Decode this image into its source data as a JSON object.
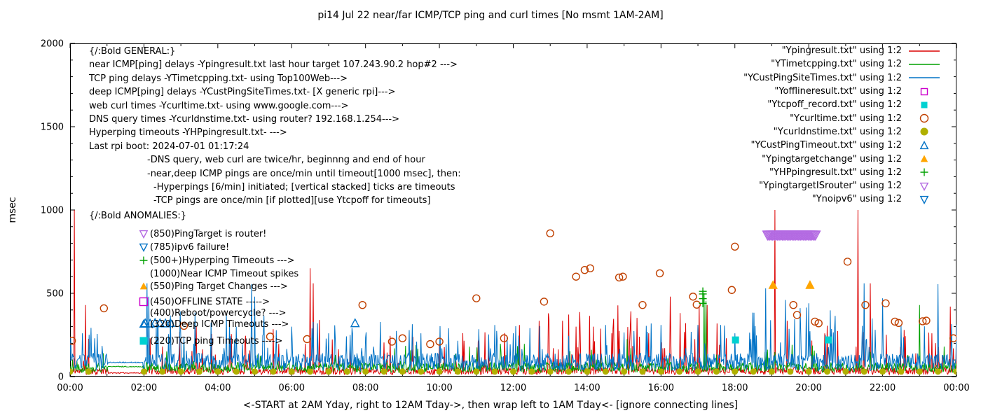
{
  "title": "pi14 Jul 22  near/far ICMP/TCP ping and curl times [No msmt 1AM-2AM]",
  "general": {
    "header": "{/:Bold GENERAL:}",
    "lines": [
      {
        "text": "near ICMP[ping] delays -Ypingresult.txt last hour target 107.243.90.2 hop#2 --->",
        "indent": 0
      },
      {
        "text": "TCP ping delays -YTimetcpping.txt- using Top100Web--->",
        "indent": 0
      },
      {
        "text": "deep ICMP[ping] delays -YCustPingSiteTimes.txt- [X generic rpi]--->",
        "indent": 0
      },
      {
        "text": "web curl times -Ycurltime.txt- using www.google.com--->",
        "indent": 0
      },
      {
        "text": "DNS query times -Ycurldnstime.txt- using router? 192.168.1.254--->",
        "indent": 0
      },
      {
        "text": "Hyperping timeouts -YHPpingresult.txt- --->",
        "indent": 0
      },
      {
        "text": "Last rpi boot: 2024-07-01 01:17:24",
        "indent": 0
      },
      {
        "text": "-DNS query, web curl are twice/hr, beginnng and end of hour",
        "indent": 1
      },
      {
        "text": "-near,deep ICMP pings are once/min until timeout[1000 msec], then:",
        "indent": 1
      },
      {
        "text": "-Hyperpings [6/min] initiated; [vertical stacked] ticks are timeouts",
        "indent": 2
      },
      {
        "text": "-TCP pings are once/min [if plotted][use Ytcpoff for timeouts]",
        "indent": 2
      }
    ]
  },
  "anomalies": {
    "header": "{/:Bold ANOMALIES:}",
    "items": [
      {
        "marker": "tri-down-open",
        "color": "#b36ae2",
        "text": "(850)PingTarget is router!"
      },
      {
        "marker": "tri-down-open",
        "color": "#0072c6",
        "text": "(785)ipv6 failure!"
      },
      {
        "marker": "plus",
        "color": "#00a000",
        "text": "(500+)Hyperping Timeouts --->"
      },
      {
        "marker": "none",
        "color": "",
        "text": "(1000)Near ICMP Timeout spikes"
      },
      {
        "marker": "tri-up-fill",
        "color": "#ffa500",
        "text": "(550)Ping Target Changes --->"
      },
      {
        "marker": "square-open",
        "color": "#cc00cc",
        "text": "(450)OFFLINE STATE ----->"
      },
      {
        "marker": "none",
        "color": "",
        "text": "(400)Reboot/powercycle? --->"
      },
      {
        "marker": "tri-up-open",
        "color": "#0072c6",
        "text": "(320)Deep ICMP Timeouts --->"
      },
      {
        "marker": "square-fill",
        "color": "#00d1d1",
        "text": "(220)TCP ping Timeouts ---->"
      }
    ]
  },
  "legend": [
    {
      "label": "\"Ypingresult.txt\" using 1:2",
      "symbol": "line",
      "color": "#dc0000"
    },
    {
      "label": "\"YTimetcpping.txt\" using 1:2",
      "symbol": "line",
      "color": "#00a000"
    },
    {
      "label": "\"YCustPingSiteTimes.txt\" using 1:2",
      "symbol": "line",
      "color": "#0072c6"
    },
    {
      "label": "\"Yofflineresult.txt\" using 1:2",
      "symbol": "square-open",
      "color": "#cc00cc"
    },
    {
      "label": "\"Ytcpoff_record.txt\" using 1:2",
      "symbol": "square-fill",
      "color": "#00d1d1"
    },
    {
      "label": "\"Ycurltime.txt\" using 1:2",
      "symbol": "circle-open",
      "color": "#c04000"
    },
    {
      "label": "\"Ycurldnstime.txt\" using 1:2",
      "symbol": "circle-fill",
      "color": "#b0b000"
    },
    {
      "label": "\"YCustPingTimeout.txt\" using 1:2",
      "symbol": "tri-up-open",
      "color": "#0072c6"
    },
    {
      "label": "\"Ypingtargetchange\" using 1:2",
      "symbol": "tri-up-fill",
      "color": "#ffa500"
    },
    {
      "label": "\"YHPpingresult.txt\" using 1:2",
      "symbol": "plus",
      "color": "#00a000"
    },
    {
      "label": "\"YpingtargetISrouter\" using 1:2",
      "symbol": "tri-down-open",
      "color": "#b36ae2"
    },
    {
      "label": "\"Ynoipv6\" using 1:2",
      "symbol": "tri-down-open",
      "color": "#0072c6"
    }
  ],
  "chart_data": {
    "type": "line",
    "x_unit": "minutes since 00:00 over a 24h window",
    "axes": {
      "ylabel": "msec",
      "xlabel": "<-START at 2AM Yday, right to 12AM Tday->, then wrap left to 1AM Tday<- [ignore connecting lines]",
      "ylim": [
        0,
        2000
      ],
      "xlim": [
        0,
        1440
      ],
      "yticks": [
        0,
        500,
        1000,
        1500,
        2000
      ],
      "xticks": {
        "minutes": [
          0,
          120,
          240,
          360,
          480,
          600,
          720,
          840,
          960,
          1080,
          1200,
          1320,
          1440
        ],
        "labels": [
          "00:00",
          "02:00",
          "04:00",
          "06:00",
          "08:00",
          "10:00",
          "12:00",
          "14:00",
          "16:00",
          "18:00",
          "20:00",
          "22:00",
          "00:00"
        ]
      },
      "no_measurement_window": "01:00-02:00"
    },
    "lines": [
      {
        "id": "Ypingresult",
        "name": "near ICMP ping delay",
        "color": "#dc0000",
        "seed": 11,
        "base": [
          12,
          55
        ],
        "spike": {
          "prob": 0.05,
          "min": 80,
          "max": 280
        },
        "busy": [
          {
            "from": 740,
            "to": 1070,
            "prob": 0.12,
            "min": 120,
            "max": 430
          }
        ],
        "quiet": [
          62,
          118
        ],
        "quiet_value": 22,
        "spikes": [
          [
            7,
            1000
          ],
          [
            25,
            430
          ],
          [
            130,
            230
          ],
          [
            150,
            180
          ],
          [
            205,
            300
          ],
          [
            262,
            255
          ],
          [
            330,
            285
          ],
          [
            390,
            650
          ],
          [
            395,
            560
          ],
          [
            405,
            340
          ],
          [
            455,
            210
          ],
          [
            520,
            245
          ],
          [
            600,
            195
          ],
          [
            640,
            215
          ],
          [
            680,
            175
          ],
          [
            730,
            310
          ],
          [
            777,
            380
          ],
          [
            800,
            335
          ],
          [
            822,
            300
          ],
          [
            850,
            300
          ],
          [
            880,
            260
          ],
          [
            910,
            285
          ],
          [
            940,
            260
          ],
          [
            975,
            480
          ],
          [
            1000,
            320
          ],
          [
            1020,
            305
          ],
          [
            1145,
            1000
          ],
          [
            1165,
            335
          ],
          [
            1230,
            305
          ],
          [
            1280,
            1000
          ],
          [
            1300,
            560
          ],
          [
            1355,
            280
          ],
          [
            1400,
            260
          ],
          [
            1430,
            420
          ]
        ]
      },
      {
        "id": "YTimetcpping",
        "name": "TCP ping delay",
        "color": "#00a000",
        "seed": 22,
        "base": [
          25,
          85
        ],
        "spike": {
          "prob": 0.03,
          "min": 90,
          "max": 200
        },
        "busy": [],
        "quiet": [
          62,
          118
        ],
        "quiet_value": 60,
        "spikes": [
          [
            185,
            210
          ],
          [
            545,
            185
          ],
          [
            905,
            225
          ],
          [
            1030,
            500
          ],
          [
            1033,
            455
          ],
          [
            1380,
            430
          ],
          [
            1420,
            180
          ]
        ]
      },
      {
        "id": "YCustPingSiteTimes",
        "name": "deep ICMP ping delay",
        "color": "#0072c6",
        "seed": 33,
        "base": [
          35,
          140
        ],
        "spike": {
          "prob": 0.06,
          "min": 150,
          "max": 330
        },
        "busy": [
          {
            "from": 120,
            "to": 330,
            "prob": 0.1,
            "min": 150,
            "max": 400
          },
          {
            "from": 1100,
            "to": 1440,
            "prob": 0.09,
            "min": 150,
            "max": 420
          }
        ],
        "quiet": [
          62,
          118
        ],
        "quiet_value": 85,
        "spikes": [
          [
            20,
            260
          ],
          [
            40,
            230
          ],
          [
            125,
            560
          ],
          [
            128,
            480
          ],
          [
            140,
            300
          ],
          [
            160,
            255
          ],
          [
            185,
            240
          ],
          [
            270,
            300
          ],
          [
            295,
            555
          ],
          [
            300,
            480
          ],
          [
            360,
            300
          ],
          [
            420,
            260
          ],
          [
            480,
            235
          ],
          [
            570,
            260
          ],
          [
            630,
            215
          ],
          [
            690,
            310
          ],
          [
            720,
            260
          ],
          [
            810,
            245
          ],
          [
            870,
            310
          ],
          [
            900,
            265
          ],
          [
            960,
            310
          ],
          [
            1020,
            310
          ],
          [
            1080,
            260
          ],
          [
            1130,
            530
          ],
          [
            1162,
            460
          ],
          [
            1200,
            440
          ],
          [
            1240,
            265
          ],
          [
            1290,
            560
          ],
          [
            1320,
            470
          ],
          [
            1350,
            310
          ],
          [
            1410,
            555
          ],
          [
            1432,
            315
          ]
        ]
      }
    ],
    "scatter": [
      {
        "id": "Ycurltime",
        "name": "web curl time",
        "marker": "circle-open",
        "color": "#c04000",
        "size": 5,
        "points": [
          [
            3,
            215
          ],
          [
            55,
            410
          ],
          [
            185,
            305
          ],
          [
            325,
            240
          ],
          [
            385,
            225
          ],
          [
            475,
            430
          ],
          [
            523,
            210
          ],
          [
            540,
            230
          ],
          [
            585,
            195
          ],
          [
            600,
            210
          ],
          [
            660,
            470
          ],
          [
            705,
            230
          ],
          [
            770,
            450
          ],
          [
            780,
            860
          ],
          [
            822,
            600
          ],
          [
            836,
            640
          ],
          [
            845,
            650
          ],
          [
            892,
            595
          ],
          [
            898,
            600
          ],
          [
            930,
            430
          ],
          [
            958,
            620
          ],
          [
            1012,
            480
          ],
          [
            1018,
            432
          ],
          [
            1075,
            520
          ],
          [
            1080,
            780
          ],
          [
            1175,
            430
          ],
          [
            1181,
            370
          ],
          [
            1210,
            330
          ],
          [
            1216,
            320
          ],
          [
            1263,
            690
          ],
          [
            1292,
            430
          ],
          [
            1325,
            440
          ],
          [
            1340,
            330
          ],
          [
            1346,
            322
          ],
          [
            1385,
            332
          ],
          [
            1391,
            336
          ],
          [
            1435,
            230
          ]
        ]
      },
      {
        "id": "Ycurldnstime",
        "name": "DNS query time",
        "marker": "circle-fill",
        "color": "#b0b000",
        "size": 4.5,
        "minutes": [
          0,
          30,
          120,
          150,
          180,
          210,
          240,
          270,
          300,
          330,
          360,
          390,
          420,
          450,
          480,
          510,
          540,
          570,
          600,
          630,
          660,
          690,
          720,
          750,
          780,
          810,
          840,
          870,
          900,
          930,
          960,
          990,
          1020,
          1050,
          1080,
          1110,
          1140,
          1170,
          1200,
          1230,
          1260,
          1290,
          1320,
          1350,
          1380,
          1410,
          1440
        ],
        "value": 30
      },
      {
        "id": "YCustPingTimeout",
        "name": "deep ICMP timeout (320)",
        "marker": "tri-up-open",
        "color": "#0072c6",
        "size": 6,
        "points": [
          [
            122,
            320
          ],
          [
            130,
            318
          ],
          [
            138,
            322
          ],
          [
            146,
            320
          ],
          [
            155,
            319
          ],
          [
            163,
            321
          ],
          [
            463,
            320
          ]
        ]
      },
      {
        "id": "Ypingtargetchange",
        "name": "ping target change (550)",
        "marker": "tri-up-fill",
        "color": "#ffa500",
        "size": 7,
        "points": [
          [
            1142,
            550
          ],
          [
            1202,
            550
          ]
        ]
      },
      {
        "id": "YHPpingresult",
        "name": "hyperping timeouts stacked (500+)",
        "marker": "plus",
        "color": "#00a000",
        "size": 5.5,
        "points": [
          [
            1028,
            440
          ],
          [
            1028,
            468
          ],
          [
            1028,
            496
          ],
          [
            1028,
            512
          ]
        ]
      },
      {
        "id": "Ytcpoff_record",
        "name": "TCP ping timeout (220)",
        "marker": "square-fill",
        "color": "#00d1d1",
        "size": 5,
        "points": [
          [
            1081,
            220
          ],
          [
            1232,
            220
          ]
        ]
      },
      {
        "id": "YpingtargetISrouter",
        "name": "ping target is router band (850)",
        "marker": "tri-down-open",
        "color": "#b36ae2",
        "size": 7,
        "band": {
          "from": 1133,
          "to": 1212,
          "step": 2,
          "value": 850
        }
      },
      {
        "id": "Yofflineresult",
        "name": "offline state (450)",
        "marker": "square-open",
        "color": "#cc00cc",
        "size": 5,
        "points": []
      },
      {
        "id": "Ynoipv6",
        "name": "ipv6 failure (785)",
        "marker": "tri-down-open",
        "color": "#0072c6",
        "size": 7,
        "points": []
      }
    ]
  }
}
